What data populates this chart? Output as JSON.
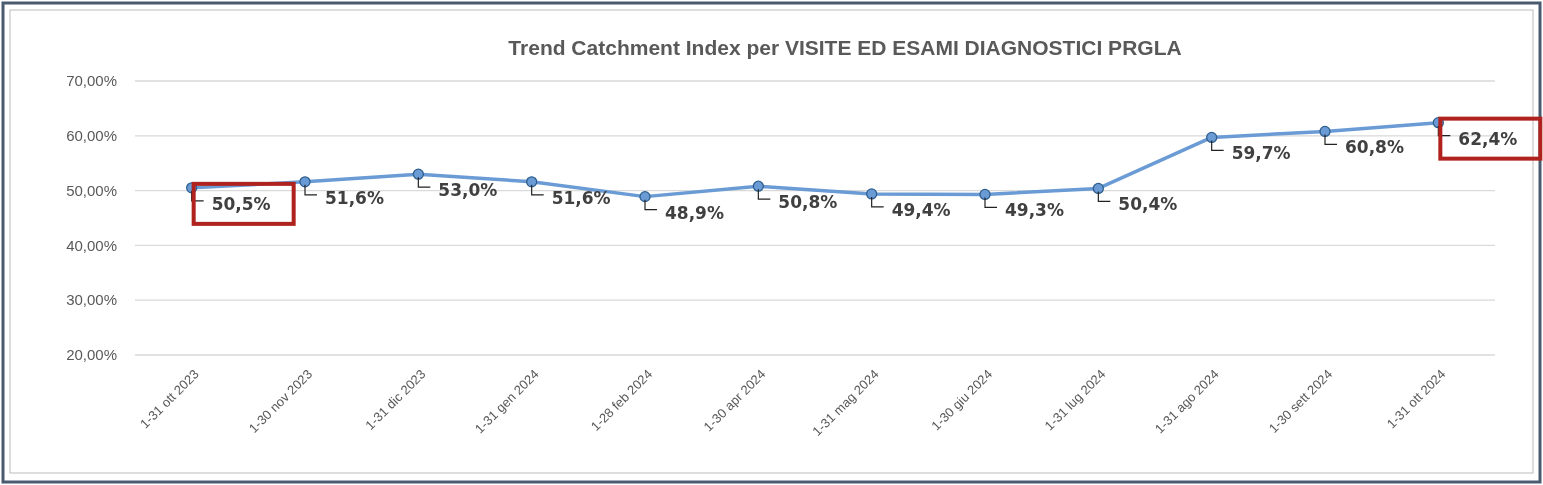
{
  "chart_data": {
    "type": "line",
    "title": "Trend Catchment Index per VISITE ED ESAMI DIAGNOSTICI PRGLA",
    "categories": [
      "1-31 ott 2023",
      "1-30 nov 2023",
      "1-31 dic 2023",
      "1-31 gen 2024",
      "1-28 feb 2024",
      "1-30 apr 2024",
      "1-31 mag 2024",
      "1-30 giu 2024",
      "1-31 lug 2024",
      "1-31 ago 2024",
      "1-30 sett 2024",
      "1-31 ott 2024"
    ],
    "series": [
      {
        "color": "#6a9bd4",
        "values": [
          50.5,
          51.6,
          53.0,
          51.6,
          48.9,
          50.8,
          49.4,
          49.3,
          50.4,
          59.7,
          60.8,
          62.4
        ],
        "value_labels": [
          "50,5%",
          "51,6%",
          "53,0%",
          "51,6%",
          "48,9%",
          "50,8%",
          "49,4%",
          "49,3%",
          "50,4%",
          "59,7%",
          "60,8%",
          "62,4%"
        ]
      }
    ],
    "ylim": [
      20,
      70
    ],
    "yticks": [
      {
        "value": 20,
        "label": "20,00%"
      },
      {
        "value": 30,
        "label": "30,00%"
      },
      {
        "value": 40,
        "label": "40,00%"
      },
      {
        "value": 50,
        "label": "50,00%"
      },
      {
        "value": 60,
        "label": "60,00%"
      },
      {
        "value": 70,
        "label": "70,00%"
      }
    ],
    "grid": "y",
    "marker": "circle",
    "line_style": "solid"
  }
}
